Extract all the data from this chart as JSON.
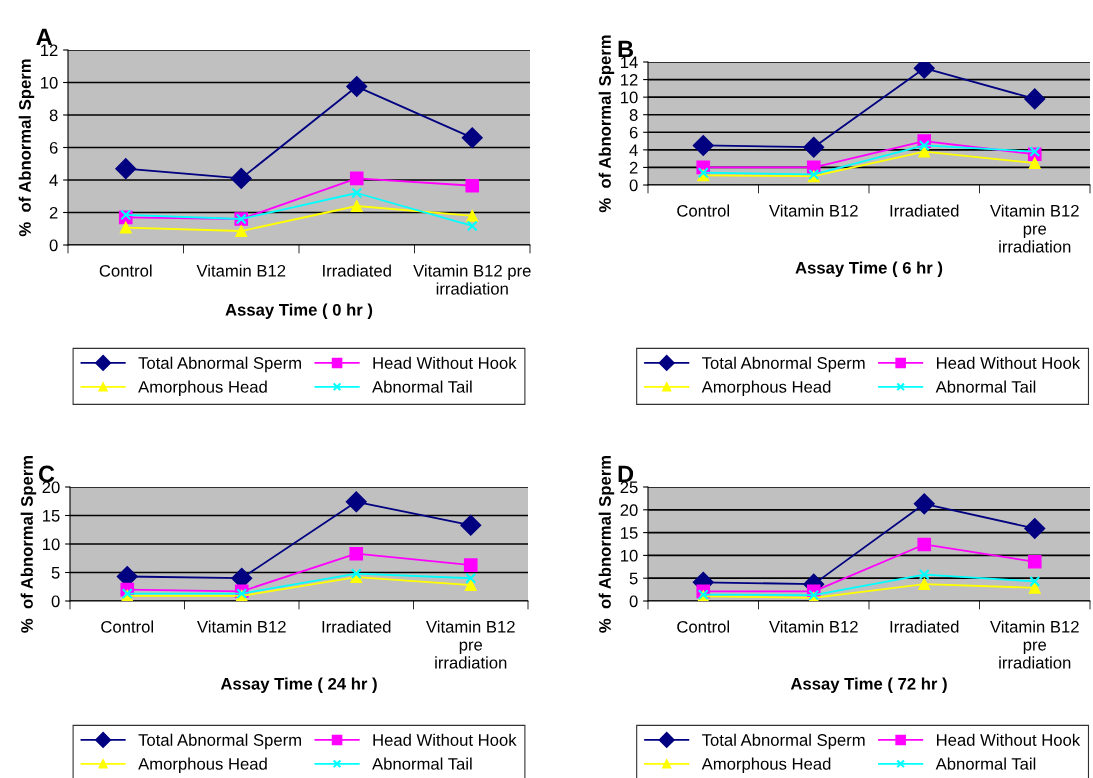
{
  "chart_data": [
    {
      "type": "line",
      "title": "A",
      "categories": [
        "Control",
        "Vitamin B12",
        "Irradiated",
        "Vitamin B12 pre\nirradiation"
      ],
      "xlabel": "Assay Time ( 0 hr )",
      "ylabel": "%  of Abnormal Sperm",
      "ylim": [
        0,
        12
      ],
      "yticks": [
        0,
        2,
        4,
        6,
        8,
        10,
        12
      ],
      "grid": "y",
      "legend": "bottom",
      "series": [
        {
          "name": "Total Abnormal Sperm",
          "color": "#000080",
          "marker": "diamond",
          "values": [
            4.7,
            4.1,
            9.75,
            6.6
          ]
        },
        {
          "name": "Head Without Hook",
          "color": "#ff00ff",
          "marker": "square",
          "values": [
            1.7,
            1.6,
            4.1,
            3.65
          ]
        },
        {
          "name": "Amorphous Head",
          "color": "#ffff00",
          "marker": "triangle",
          "values": [
            1.07,
            0.86,
            2.4,
            1.8
          ]
        },
        {
          "name": "Abnormal Tail",
          "color": "#00ffff",
          "marker": "cross",
          "values": [
            1.85,
            1.6,
            3.2,
            1.17
          ]
        }
      ]
    },
    {
      "type": "line",
      "title": "B",
      "categories": [
        "Control",
        "Vitamin B12",
        "Irradiated",
        "Vitamin B12\npre\nirradiation"
      ],
      "xlabel": "Assay Time ( 6 hr )",
      "ylabel": "%  of Abnormal Sperm",
      "ylim": [
        0,
        14
      ],
      "yticks": [
        0,
        2,
        4,
        6,
        8,
        10,
        12,
        14
      ],
      "grid": "y",
      "legend": "bottom",
      "series": [
        {
          "name": "Total Abnormal Sperm",
          "color": "#000080",
          "marker": "diamond",
          "values": [
            4.5,
            4.3,
            13.3,
            9.8
          ]
        },
        {
          "name": "Head Without Hook",
          "color": "#ff00ff",
          "marker": "square",
          "values": [
            2.0,
            2.0,
            5.0,
            3.5
          ]
        },
        {
          "name": "Amorphous Head",
          "color": "#ffff00",
          "marker": "triangle",
          "values": [
            1.1,
            1.0,
            3.8,
            2.5
          ]
        },
        {
          "name": "Abnormal Tail",
          "color": "#00ffff",
          "marker": "cross",
          "values": [
            1.4,
            1.2,
            4.5,
            3.8
          ]
        }
      ]
    },
    {
      "type": "line",
      "title": "C",
      "categories": [
        "Control",
        "Vitamin B12",
        "Irradiated",
        "Vitamin B12\npre\nirradiation"
      ],
      "xlabel": "Assay Time ( 24 hr )",
      "ylabel": "%  of Abnormal Sperm",
      "ylim": [
        0,
        20
      ],
      "yticks": [
        0,
        5,
        10,
        15,
        20
      ],
      "grid": "y",
      "legend": "bottom",
      "series": [
        {
          "name": "Total Abnormal Sperm",
          "color": "#000080",
          "marker": "diamond",
          "values": [
            4.3,
            4.0,
            17.4,
            13.3
          ]
        },
        {
          "name": "Head Without Hook",
          "color": "#ff00ff",
          "marker": "square",
          "values": [
            2.0,
            1.7,
            8.3,
            6.3
          ]
        },
        {
          "name": "Amorphous Head",
          "color": "#ffff00",
          "marker": "triangle",
          "values": [
            0.9,
            0.9,
            4.2,
            2.8
          ]
        },
        {
          "name": "Abnormal Tail",
          "color": "#00ffff",
          "marker": "cross",
          "values": [
            1.3,
            1.3,
            4.8,
            4.0
          ]
        }
      ]
    },
    {
      "type": "line",
      "title": "D",
      "categories": [
        "Control",
        "Vitamin B12",
        "Irradiated",
        "Vitamin B12\npre\nirradiation"
      ],
      "xlabel": "Assay Time ( 72 hr )",
      "ylabel": "%  of Abnormal Sperm",
      "ylim": [
        0,
        25
      ],
      "yticks": [
        0,
        5,
        10,
        15,
        20,
        25
      ],
      "grid": "y",
      "legend": "bottom",
      "series": [
        {
          "name": "Total Abnormal Sperm",
          "color": "#000080",
          "marker": "diamond",
          "values": [
            4.1,
            3.7,
            21.3,
            15.9
          ]
        },
        {
          "name": "Head Without Hook",
          "color": "#ff00ff",
          "marker": "square",
          "values": [
            2.1,
            2.1,
            12.4,
            8.6
          ]
        },
        {
          "name": "Amorphous Head",
          "color": "#ffff00",
          "marker": "triangle",
          "values": [
            1.0,
            0.7,
            3.7,
            2.9
          ]
        },
        {
          "name": "Abnormal Tail",
          "color": "#00ffff",
          "marker": "cross",
          "values": [
            1.4,
            1.3,
            5.8,
            4.3
          ]
        }
      ]
    }
  ]
}
